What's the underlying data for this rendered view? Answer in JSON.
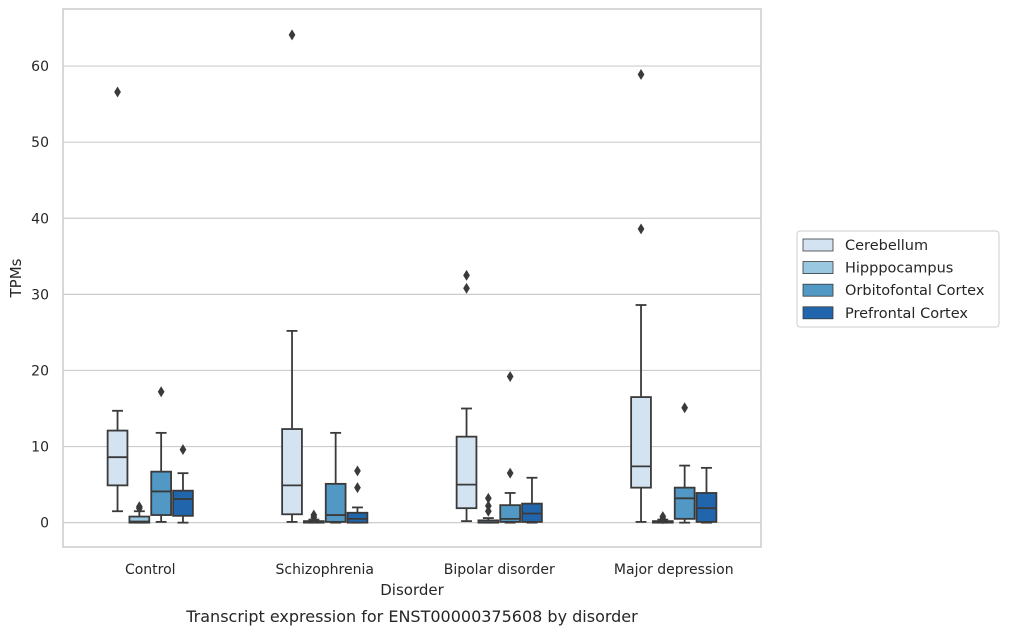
{
  "caption": "Transcript expression for ENST00000375608 by disorder",
  "chart_data": {
    "type": "box",
    "xlabel": "Disorder",
    "ylabel": "TPMs",
    "ylim": [
      -3.2,
      67.5
    ],
    "yticks": [
      0,
      10,
      20,
      30,
      40,
      50,
      60
    ],
    "grid": "horizontal",
    "legend_position": "right",
    "categories": [
      "Control",
      "Schizophrenia",
      "Bipolar disorder",
      "Major depression"
    ],
    "colors": {
      "box_edge": "#3a3a3a",
      "grid": "#cccccc",
      "frame": "#cccccc"
    },
    "series": [
      {
        "name": "Cerebellum",
        "color": "#d3e3f1",
        "boxes": [
          {
            "whisker_low": 1.5,
            "q1": 4.9,
            "median": 8.6,
            "q3": 12.1,
            "whisker_high": 14.7,
            "outliers": [
              56.6
            ]
          },
          {
            "whisker_low": 0.1,
            "q1": 1.1,
            "median": 4.9,
            "q3": 12.3,
            "whisker_high": 25.2,
            "outliers": [
              64.1
            ]
          },
          {
            "whisker_low": 0.2,
            "q1": 1.9,
            "median": 5.0,
            "q3": 11.3,
            "whisker_high": 15.0,
            "outliers": [
              30.8,
              32.5
            ]
          },
          {
            "whisker_low": 0.1,
            "q1": 4.6,
            "median": 7.4,
            "q3": 16.5,
            "whisker_high": 28.6,
            "outliers": [
              38.6,
              58.9
            ]
          }
        ]
      },
      {
        "name": "Hipppocampus",
        "color": "#9ac8e0",
        "boxes": [
          {
            "whisker_low": 0.0,
            "q1": 0.0,
            "median": 0.15,
            "q3": 0.8,
            "whisker_high": 1.5,
            "outliers": [
              1.9,
              2.1
            ]
          },
          {
            "whisker_low": 0.0,
            "q1": 0.0,
            "median": 0.05,
            "q3": 0.2,
            "whisker_high": 0.4,
            "outliers": [
              0.7,
              1.0
            ]
          },
          {
            "whisker_low": 0.0,
            "q1": 0.0,
            "median": 0.05,
            "q3": 0.3,
            "whisker_high": 0.6,
            "outliers": [
              1.5,
              2.2,
              3.2
            ]
          },
          {
            "whisker_low": 0.0,
            "q1": 0.0,
            "median": 0.05,
            "q3": 0.2,
            "whisker_high": 0.4,
            "outliers": [
              0.5,
              0.8
            ]
          }
        ]
      },
      {
        "name": "Orbitofontal Cortex",
        "color": "#5198c5",
        "boxes": [
          {
            "whisker_low": 0.1,
            "q1": 1.0,
            "median": 4.1,
            "q3": 6.7,
            "whisker_high": 11.8,
            "outliers": [
              17.2
            ]
          },
          {
            "whisker_low": 0.0,
            "q1": 0.1,
            "median": 1.0,
            "q3": 5.1,
            "whisker_high": 11.8,
            "outliers": []
          },
          {
            "whisker_low": 0.0,
            "q1": 0.1,
            "median": 0.5,
            "q3": 2.3,
            "whisker_high": 3.9,
            "outliers": [
              6.5,
              19.2
            ]
          },
          {
            "whisker_low": 0.0,
            "q1": 0.5,
            "median": 3.2,
            "q3": 4.6,
            "whisker_high": 7.5,
            "outliers": [
              15.1
            ]
          }
        ]
      },
      {
        "name": "Prefrontal Cortex",
        "color": "#2166ac",
        "boxes": [
          {
            "whisker_low": 0.0,
            "q1": 0.9,
            "median": 3.1,
            "q3": 4.2,
            "whisker_high": 6.5,
            "outliers": [
              9.6
            ]
          },
          {
            "whisker_low": 0.0,
            "q1": 0.0,
            "median": 0.5,
            "q3": 1.3,
            "whisker_high": 2.0,
            "outliers": [
              4.6,
              6.8
            ]
          },
          {
            "whisker_low": 0.0,
            "q1": 0.1,
            "median": 1.2,
            "q3": 2.5,
            "whisker_high": 5.9,
            "outliers": []
          },
          {
            "whisker_low": 0.0,
            "q1": 0.1,
            "median": 1.9,
            "q3": 3.9,
            "whisker_high": 7.2,
            "outliers": []
          }
        ]
      }
    ]
  }
}
